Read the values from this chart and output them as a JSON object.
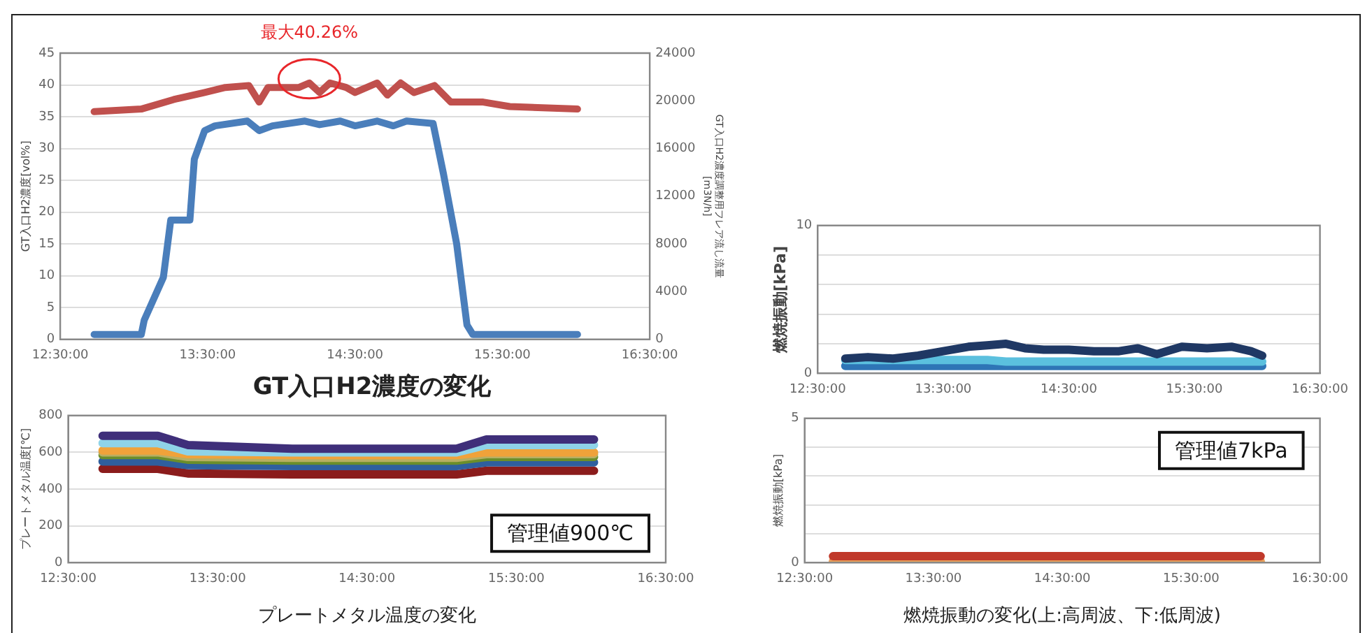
{
  "chart_data": [
    {
      "type": "line",
      "title": "GT入口H2濃度の変化",
      "ylabel": "GT入口H2濃度[vol%]",
      "y2label": "GT入口H2濃度調整用フレア流し流量\n[m3N/h]",
      "x": [
        12.73,
        13.05,
        13.27,
        13.48,
        13.62,
        13.78,
        13.85,
        13.91,
        14.12,
        14.19,
        14.26,
        14.33,
        14.44,
        14.5,
        14.65,
        14.72,
        14.81,
        14.9,
        15.04,
        15.15,
        15.37,
        15.55,
        16.01
      ],
      "series": [
        {
          "color": "#c0504d",
          "values": [
            35.8,
            36.2,
            37.7,
            38.8,
            39.6,
            39.9,
            37.3,
            39.6,
            39.6,
            40.3,
            38.8,
            40.3,
            39.6,
            38.8,
            40.3,
            38.4,
            40.3,
            38.8,
            39.9,
            37.3,
            37.3,
            36.6,
            36.2
          ]
        },
        {
          "color": "#4a7ebb",
          "axis": "y2",
          "x": [
            12.73,
            13.05,
            13.07,
            13.2,
            13.25,
            13.38,
            13.41,
            13.48,
            13.55,
            13.77,
            13.85,
            13.94,
            14.16,
            14.26,
            14.4,
            14.5,
            14.65,
            14.76,
            14.85,
            15.03,
            15.1,
            15.19,
            15.26,
            15.3,
            16.01
          ],
          "values": [
            400,
            400,
            1600,
            5200,
            10000,
            10000,
            15100,
            17500,
            17900,
            18300,
            17500,
            17900,
            18300,
            18000,
            18300,
            17900,
            18300,
            17900,
            18300,
            18100,
            13900,
            8000,
            1200,
            400,
            400
          ]
        }
      ],
      "xlim": [
        12.5,
        16.5
      ],
      "xticks": [
        {
          "value": 12.5,
          "label": "12:30:00"
        },
        {
          "value": 13.5,
          "label": "13:30:00"
        },
        {
          "value": 14.5,
          "label": "14:30:00"
        },
        {
          "value": 15.5,
          "label": "15:30:00"
        },
        {
          "value": 16.5,
          "label": "16:30:00"
        }
      ],
      "ylim": [
        0,
        45
      ],
      "yticks": [
        0,
        5,
        10,
        15,
        20,
        25,
        30,
        35,
        40,
        45
      ],
      "y2lim": [
        0,
        24000
      ],
      "y2ticks": [
        0,
        4000,
        8000,
        12000,
        16000,
        20000,
        24000
      ],
      "grid": "y",
      "marker": "none",
      "line_style": "solid",
      "annotations": [
        {
          "text": "最大40.26%",
          "x": 14.19,
          "y": 40.3
        }
      ]
    },
    {
      "type": "line",
      "xlabel": "プレートメタル温度の変化",
      "ylabel": "プレートメタル温度[℃]",
      "x": [
        12.73,
        13.1,
        13.3,
        14.0,
        15.1,
        15.3,
        16.02
      ],
      "series": [
        {
          "color": "#3f2f7a",
          "values": [
            690,
            690,
            640,
            620,
            620,
            670,
            670
          ]
        },
        {
          "color": "#8fd3e8",
          "values": [
            650,
            650,
            605,
            600,
            600,
            640,
            640
          ]
        },
        {
          "color": "#f0a23a",
          "values": [
            610,
            610,
            590,
            585,
            585,
            600,
            600
          ]
        },
        {
          "color": "#b8ae62",
          "values": [
            600,
            600,
            575,
            570,
            570,
            590,
            590
          ]
        },
        {
          "color": "#6b8e2a",
          "values": [
            585,
            585,
            560,
            555,
            555,
            575,
            575
          ]
        },
        {
          "color": "#2f5f9e",
          "values": [
            550,
            550,
            530,
            525,
            525,
            545,
            545
          ]
        },
        {
          "color": "#8b1c1c",
          "values": [
            510,
            510,
            485,
            480,
            480,
            500,
            500
          ]
        }
      ],
      "xlim": [
        12.5,
        16.5
      ],
      "xticks": [
        {
          "value": 12.5,
          "label": "12:30:00"
        },
        {
          "value": 13.5,
          "label": "13:30:00"
        },
        {
          "value": 14.5,
          "label": "14:30:00"
        },
        {
          "value": 15.5,
          "label": "15:30:00"
        },
        {
          "value": 16.5,
          "label": "16:30:00"
        }
      ],
      "ylim": [
        0,
        800
      ],
      "yticks": [
        0,
        200,
        400,
        600,
        800
      ],
      "grid": "y",
      "marker": "none",
      "line_style": "solid",
      "annotations": [
        "管理値900℃"
      ]
    },
    {
      "type": "line",
      "ylabel": "燃焼振動[kPa]",
      "x": [
        12.72,
        12.9,
        13.1,
        13.3,
        13.5,
        13.7,
        13.85,
        14.0,
        14.15,
        14.3,
        14.5,
        14.7,
        14.9,
        15.05,
        15.2,
        15.4,
        15.6,
        15.8,
        15.95,
        16.04
      ],
      "series": [
        {
          "color": "#1f3864",
          "values": [
            1.0,
            1.1,
            1.0,
            1.2,
            1.5,
            1.8,
            1.9,
            2.0,
            1.7,
            1.6,
            1.6,
            1.5,
            1.5,
            1.7,
            1.3,
            1.8,
            1.7,
            1.8,
            1.5,
            1.2
          ]
        },
        {
          "color": "#5bc0de",
          "values": [
            0.9,
            0.9,
            0.9,
            0.9,
            0.9,
            0.9,
            0.9,
            0.8,
            0.8,
            0.8,
            0.8,
            0.8,
            0.8,
            0.8,
            0.8,
            0.8,
            0.8,
            0.8,
            0.8,
            0.8
          ]
        },
        {
          "color": "#2e75b6",
          "values": [
            0.5,
            0.5,
            0.5,
            0.5,
            0.5,
            0.5,
            0.5,
            0.5,
            0.5,
            0.5,
            0.5,
            0.5,
            0.5,
            0.5,
            0.5,
            0.5,
            0.5,
            0.5,
            0.5,
            0.5
          ]
        }
      ],
      "xlim": [
        12.5,
        16.5
      ],
      "xticks": [
        {
          "value": 12.5,
          "label": "12:30:00"
        },
        {
          "value": 13.5,
          "label": "13:30:00"
        },
        {
          "value": 14.5,
          "label": "14:30:00"
        },
        {
          "value": 15.5,
          "label": "15:30:00"
        },
        {
          "value": 16.5,
          "label": "16:30:00"
        }
      ],
      "ylim": [
        0,
        10
      ],
      "yticks": [
        0,
        {
          "value": 2,
          "label": null
        },
        {
          "value": 4,
          "label": null
        },
        {
          "value": 6,
          "label": null
        },
        {
          "value": 8,
          "label": null
        },
        10
      ],
      "grid": "y",
      "marker": "none",
      "line_style": "solid"
    },
    {
      "type": "line",
      "xlabel": "燃焼振動の変化(上:高周波、下:低周波)",
      "ylabel": "燃焼振動[kPa]",
      "x": [
        12.72,
        14.5,
        16.04
      ],
      "series": [
        {
          "color": "#c0392b",
          "values": [
            0.22,
            0.22,
            0.22
          ]
        },
        {
          "color": "#e8a05a",
          "values": [
            0.05,
            0.05,
            0.05
          ]
        }
      ],
      "xlim": [
        12.5,
        16.5
      ],
      "xticks": [
        {
          "value": 12.5,
          "label": "12:30:00"
        },
        {
          "value": 13.5,
          "label": "13:30:00"
        },
        {
          "value": 14.5,
          "label": "14:30:00"
        },
        {
          "value": 15.5,
          "label": "15:30:00"
        },
        {
          "value": 16.5,
          "label": "16:30:00"
        }
      ],
      "ylim": [
        0,
        5
      ],
      "yticks": [
        0,
        {
          "value": 1,
          "label": null
        },
        {
          "value": 2,
          "label": null
        },
        {
          "value": 3,
          "label": null
        },
        {
          "value": 4,
          "label": null
        },
        5
      ],
      "grid": "y",
      "marker": "none",
      "line_style": "solid",
      "annotations": [
        "管理値7kPa"
      ]
    }
  ]
}
